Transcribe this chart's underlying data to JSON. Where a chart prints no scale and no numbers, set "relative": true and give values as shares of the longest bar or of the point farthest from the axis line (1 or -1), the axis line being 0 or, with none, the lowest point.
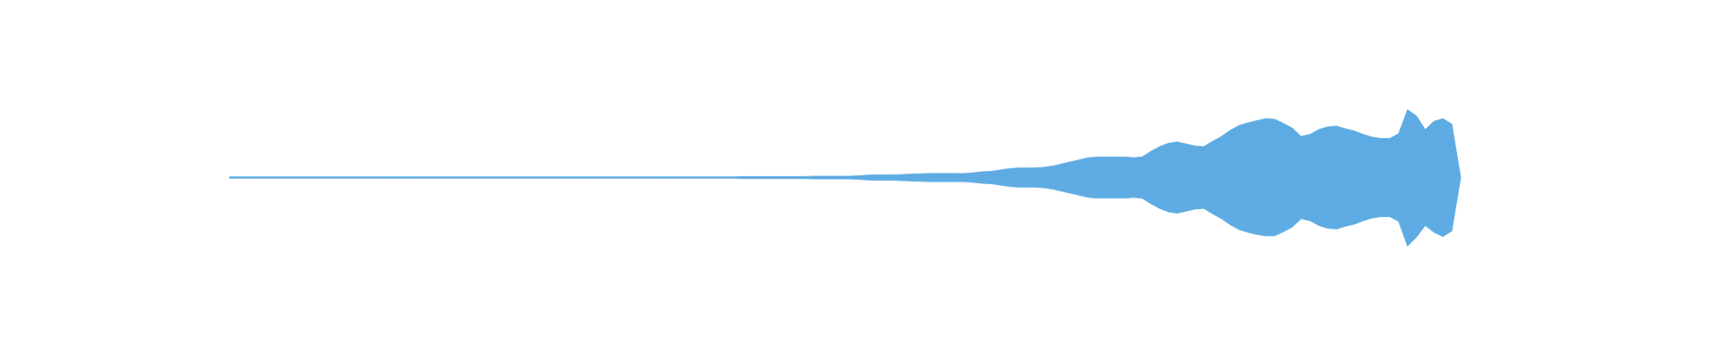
{
  "chart_data": {
    "type": "area",
    "relative": true,
    "categories": [
      null,
      null,
      null,
      null,
      null,
      null,
      null,
      null,
      null,
      null,
      null,
      null,
      null,
      null,
      null,
      null,
      null,
      null,
      null,
      null,
      null,
      null,
      null,
      null,
      null,
      null,
      null,
      null,
      null,
      null,
      null,
      null,
      null,
      null,
      null,
      null,
      null,
      null,
      null,
      null,
      null,
      null,
      null,
      null,
      null,
      null,
      null,
      null,
      null,
      null,
      null,
      null,
      null,
      null,
      null,
      null,
      null,
      null,
      null,
      null,
      null,
      null,
      null,
      null,
      null,
      null,
      null,
      null,
      null,
      null,
      null,
      null,
      null,
      null,
      null,
      null,
      null,
      null,
      null,
      null,
      null,
      null,
      null,
      null,
      null,
      null,
      null,
      null,
      null,
      null,
      null,
      null,
      null,
      null,
      null,
      null,
      null,
      null,
      null,
      null,
      null,
      null,
      null,
      null,
      null,
      null,
      null,
      null,
      null,
      null,
      null,
      null,
      null,
      null,
      null,
      null,
      null,
      null,
      null,
      null,
      null,
      null,
      null,
      null,
      null,
      null,
      null,
      null,
      null,
      null,
      null,
      null,
      null,
      null,
      null,
      null,
      null,
      null,
      null,
      null
    ],
    "series": [
      {
        "color": "#5dabe2",
        "values": [
          0.01,
          0.01,
          0.01,
          0.01,
          0.01,
          0.01,
          0.01,
          0.01,
          0.01,
          0.01,
          0.01,
          0.01,
          0.01,
          0.01,
          0.01,
          0.01,
          0.01,
          0.01,
          0.01,
          0.01,
          0.01,
          0.01,
          0.01,
          0.01,
          0.01,
          0.01,
          0.01,
          0.01,
          0.01,
          0.01,
          0.01,
          0.01,
          0.01,
          0.01,
          0.01,
          0.01,
          0.01,
          0.01,
          0.01,
          0.01,
          0.01,
          0.01,
          0.01,
          0.01,
          0.01,
          0.01,
          0.01,
          0.01,
          0.01,
          0.01,
          0.01,
          0.01,
          0.01,
          0.01,
          0.01,
          0.01,
          0.01,
          0.01,
          0.015,
          0.015,
          0.015,
          0.015,
          0.015,
          0.015,
          0.015,
          0.015,
          0.02,
          0.02,
          0.02,
          0.02,
          0.02,
          0.025,
          0.035,
          0.04,
          0.04,
          0.04,
          0.045,
          0.05,
          0.055,
          0.06,
          0.06,
          0.06,
          0.06,
          0.06,
          0.07,
          0.085,
          0.09,
          0.11,
          0.13,
          0.14,
          0.14,
          0.14,
          0.15,
          0.17,
          0.2,
          0.23,
          0.26,
          0.29,
          0.3,
          0.3,
          0.3,
          0.3,
          0.29,
          0.3,
          0.38,
          0.45,
          0.5,
          0.52,
          0.49,
          0.46,
          0.45,
          0.53,
          0.6,
          0.69,
          0.76,
          0.8,
          0.83,
          0.86,
          0.85,
          0.79,
          0.72,
          0.6,
          0.63,
          0.7,
          0.74,
          0.75,
          0.71,
          0.68,
          0.63,
          0.59,
          0.57,
          0.57,
          0.64,
          0.99,
          0.9,
          0.7,
          0.82,
          0.86,
          0.78,
          0
        ]
      },
      {
        "color": "#5eace3",
        "values": [
          -0.01,
          -0.01,
          -0.01,
          -0.01,
          -0.01,
          -0.01,
          -0.01,
          -0.01,
          -0.01,
          -0.01,
          -0.01,
          -0.01,
          -0.01,
          -0.01,
          -0.01,
          -0.01,
          -0.01,
          -0.01,
          -0.01,
          -0.01,
          -0.01,
          -0.01,
          -0.01,
          -0.01,
          -0.01,
          -0.01,
          -0.01,
          -0.01,
          -0.01,
          -0.01,
          -0.01,
          -0.01,
          -0.01,
          -0.01,
          -0.01,
          -0.01,
          -0.01,
          -0.01,
          -0.01,
          -0.01,
          -0.01,
          -0.01,
          -0.01,
          -0.01,
          -0.01,
          -0.01,
          -0.01,
          -0.01,
          -0.01,
          -0.01,
          -0.01,
          -0.01,
          -0.01,
          -0.01,
          -0.01,
          -0.01,
          -0.01,
          -0.01,
          -0.015,
          -0.015,
          -0.015,
          -0.015,
          -0.015,
          -0.015,
          -0.015,
          -0.015,
          -0.02,
          -0.02,
          -0.02,
          -0.02,
          -0.02,
          -0.025,
          -0.035,
          -0.04,
          -0.04,
          -0.04,
          -0.045,
          -0.05,
          -0.055,
          -0.06,
          -0.06,
          -0.06,
          -0.06,
          -0.06,
          -0.07,
          -0.085,
          -0.09,
          -0.11,
          -0.13,
          -0.14,
          -0.14,
          -0.14,
          -0.15,
          -0.17,
          -0.2,
          -0.23,
          -0.26,
          -0.29,
          -0.3,
          -0.3,
          -0.3,
          -0.3,
          -0.29,
          -0.3,
          -0.38,
          -0.45,
          -0.5,
          -0.52,
          -0.49,
          -0.46,
          -0.45,
          -0.53,
          -0.6,
          -0.69,
          -0.76,
          -0.8,
          -0.83,
          -0.85,
          -0.85,
          -0.79,
          -0.72,
          -0.6,
          -0.63,
          -0.7,
          -0.74,
          -0.75,
          -0.71,
          -0.68,
          -0.63,
          -0.59,
          -0.57,
          -0.57,
          -0.64,
          -1,
          -0.87,
          -0.7,
          -0.8,
          -0.86,
          -0.78,
          0
        ]
      }
    ]
  }
}
